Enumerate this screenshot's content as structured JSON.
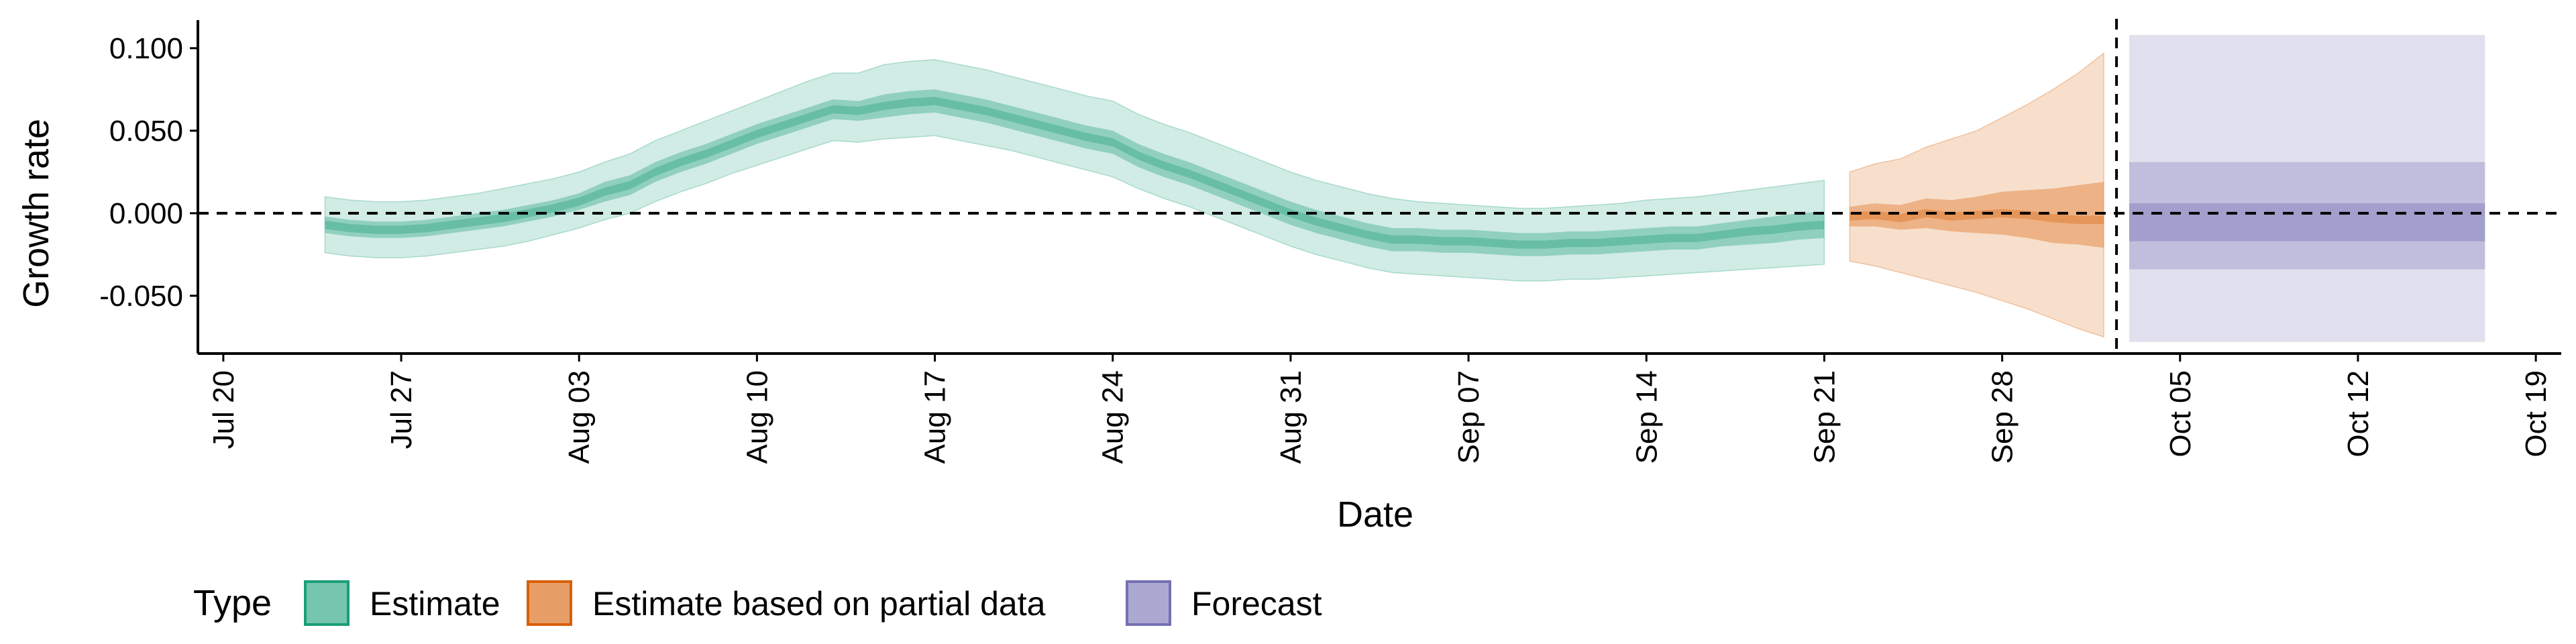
{
  "chart_data": {
    "type": "area",
    "title": "",
    "xlabel": "Date",
    "ylabel": "Growth rate",
    "x_ticks": [
      "Jul 20",
      "Jul 27",
      "Aug 03",
      "Aug 10",
      "Aug 17",
      "Aug 24",
      "Aug 31",
      "Sep 07",
      "Sep 14",
      "Sep 21",
      "Sep 28",
      "Oct 05",
      "Oct 12",
      "Oct 19"
    ],
    "y_ticks": [
      "0.100",
      "0.050",
      "0.000",
      "-0.050"
    ],
    "y_tick_values": [
      0.1,
      0.05,
      0.0,
      -0.05
    ],
    "xlim": [
      "2020-07-19",
      "2020-10-20"
    ],
    "ylim": [
      -0.085,
      0.117
    ],
    "grid": false,
    "legend": {
      "title": "Type",
      "position": "bottom",
      "entries": [
        "Estimate",
        "Estimate based on partial data",
        "Forecast"
      ]
    },
    "reference_lines": {
      "horizontal_y": 0.0,
      "vertical_x": "2020-10-02",
      "style": "dashed"
    },
    "colors": {
      "Estimate": "#1b9e77",
      "Estimate based on partial data": "#d95f02",
      "Forecast": "#7570b3"
    },
    "series": [
      {
        "name": "Estimate",
        "x": [
          "2020-07-24",
          "2020-07-25",
          "2020-07-26",
          "2020-07-27",
          "2020-07-28",
          "2020-07-29",
          "2020-07-30",
          "2020-07-31",
          "2020-08-01",
          "2020-08-02",
          "2020-08-03",
          "2020-08-04",
          "2020-08-05",
          "2020-08-06",
          "2020-08-07",
          "2020-08-08",
          "2020-08-09",
          "2020-08-10",
          "2020-08-11",
          "2020-08-12",
          "2020-08-13",
          "2020-08-14",
          "2020-08-15",
          "2020-08-16",
          "2020-08-17",
          "2020-08-18",
          "2020-08-19",
          "2020-08-20",
          "2020-08-21",
          "2020-08-22",
          "2020-08-23",
          "2020-08-24",
          "2020-08-25",
          "2020-08-26",
          "2020-08-27",
          "2020-08-28",
          "2020-08-29",
          "2020-08-30",
          "2020-08-31",
          "2020-09-01",
          "2020-09-02",
          "2020-09-03",
          "2020-09-04",
          "2020-09-05",
          "2020-09-06",
          "2020-09-07",
          "2020-09-08",
          "2020-09-09",
          "2020-09-10",
          "2020-09-11",
          "2020-09-12",
          "2020-09-13",
          "2020-09-14",
          "2020-09-15",
          "2020-09-16",
          "2020-09-17",
          "2020-09-18",
          "2020-09-19",
          "2020-09-20",
          "2020-09-21"
        ],
        "median": [
          -0.007,
          -0.009,
          -0.01,
          -0.01,
          -0.009,
          -0.007,
          -0.005,
          -0.003,
          0.0,
          0.003,
          0.007,
          0.013,
          0.017,
          0.025,
          0.031,
          0.036,
          0.042,
          0.048,
          0.053,
          0.058,
          0.063,
          0.062,
          0.065,
          0.067,
          0.068,
          0.065,
          0.062,
          0.058,
          0.054,
          0.05,
          0.046,
          0.043,
          0.035,
          0.029,
          0.024,
          0.018,
          0.012,
          0.006,
          0.0,
          -0.005,
          -0.009,
          -0.013,
          -0.016,
          -0.016,
          -0.017,
          -0.017,
          -0.018,
          -0.019,
          -0.019,
          -0.018,
          -0.018,
          -0.017,
          -0.016,
          -0.015,
          -0.015,
          -0.013,
          -0.011,
          -0.01,
          -0.008,
          -0.007
        ],
        "lower_50": [
          -0.012,
          -0.014,
          -0.015,
          -0.015,
          -0.014,
          -0.012,
          -0.01,
          -0.008,
          -0.005,
          -0.002,
          0.002,
          0.007,
          0.011,
          0.019,
          0.025,
          0.03,
          0.036,
          0.042,
          0.047,
          0.052,
          0.057,
          0.056,
          0.058,
          0.06,
          0.061,
          0.058,
          0.055,
          0.051,
          0.047,
          0.043,
          0.039,
          0.036,
          0.028,
          0.022,
          0.017,
          0.011,
          0.005,
          -0.001,
          -0.007,
          -0.012,
          -0.016,
          -0.02,
          -0.023,
          -0.023,
          -0.024,
          -0.024,
          -0.025,
          -0.026,
          -0.026,
          -0.025,
          -0.025,
          -0.024,
          -0.023,
          -0.022,
          -0.022,
          -0.02,
          -0.019,
          -0.018,
          -0.016,
          -0.015
        ],
        "upper_50": [
          -0.002,
          -0.004,
          -0.005,
          -0.005,
          -0.004,
          -0.002,
          0.0,
          0.002,
          0.005,
          0.008,
          0.012,
          0.019,
          0.023,
          0.031,
          0.037,
          0.042,
          0.048,
          0.054,
          0.059,
          0.064,
          0.069,
          0.068,
          0.072,
          0.074,
          0.075,
          0.072,
          0.069,
          0.065,
          0.061,
          0.057,
          0.053,
          0.05,
          0.042,
          0.036,
          0.031,
          0.025,
          0.019,
          0.013,
          0.007,
          0.002,
          -0.002,
          -0.006,
          -0.009,
          -0.009,
          -0.01,
          -0.01,
          -0.011,
          -0.012,
          -0.012,
          -0.011,
          -0.011,
          -0.01,
          -0.009,
          -0.008,
          -0.008,
          -0.006,
          -0.004,
          -0.002,
          0.0,
          0.001
        ],
        "lower_90": [
          -0.024,
          -0.026,
          -0.027,
          -0.027,
          -0.026,
          -0.024,
          -0.022,
          -0.02,
          -0.017,
          -0.013,
          -0.009,
          -0.004,
          0.0,
          0.007,
          0.013,
          0.018,
          0.024,
          0.029,
          0.034,
          0.039,
          0.044,
          0.043,
          0.045,
          0.046,
          0.047,
          0.044,
          0.041,
          0.038,
          0.034,
          0.03,
          0.026,
          0.022,
          0.015,
          0.009,
          0.004,
          -0.002,
          -0.008,
          -0.014,
          -0.02,
          -0.025,
          -0.029,
          -0.033,
          -0.036,
          -0.037,
          -0.038,
          -0.039,
          -0.04,
          -0.041,
          -0.041,
          -0.04,
          -0.04,
          -0.039,
          -0.038,
          -0.037,
          -0.036,
          -0.035,
          -0.034,
          -0.033,
          -0.032,
          -0.031
        ],
        "upper_90": [
          0.01,
          0.008,
          0.007,
          0.007,
          0.008,
          0.01,
          0.012,
          0.015,
          0.018,
          0.021,
          0.025,
          0.031,
          0.036,
          0.044,
          0.05,
          0.056,
          0.062,
          0.068,
          0.074,
          0.08,
          0.085,
          0.085,
          0.09,
          0.092,
          0.093,
          0.09,
          0.087,
          0.083,
          0.079,
          0.075,
          0.071,
          0.068,
          0.06,
          0.054,
          0.049,
          0.043,
          0.037,
          0.031,
          0.025,
          0.02,
          0.016,
          0.012,
          0.009,
          0.007,
          0.006,
          0.005,
          0.004,
          0.003,
          0.003,
          0.004,
          0.005,
          0.006,
          0.008,
          0.009,
          0.01,
          0.012,
          0.014,
          0.016,
          0.018,
          0.02
        ]
      },
      {
        "name": "Estimate based on partial data",
        "x": [
          "2020-09-22",
          "2020-09-23",
          "2020-09-24",
          "2020-09-25",
          "2020-09-26",
          "2020-09-27",
          "2020-09-28",
          "2020-09-29",
          "2020-09-30",
          "2020-10-01",
          "2020-10-02"
        ],
        "median": [
          -0.002,
          -0.001,
          -0.003,
          0.0,
          -0.002,
          -0.001,
          0.0,
          -0.001,
          -0.003,
          -0.004,
          -0.004
        ],
        "lower_50": [
          -0.008,
          -0.008,
          -0.01,
          -0.009,
          -0.011,
          -0.012,
          -0.013,
          -0.015,
          -0.018,
          -0.019,
          -0.021
        ],
        "upper_50": [
          0.004,
          0.006,
          0.005,
          0.009,
          0.008,
          0.01,
          0.013,
          0.014,
          0.015,
          0.017,
          0.019
        ],
        "lower_90": [
          -0.029,
          -0.032,
          -0.036,
          -0.04,
          -0.044,
          -0.048,
          -0.053,
          -0.058,
          -0.064,
          -0.07,
          -0.075
        ],
        "upper_90": [
          0.025,
          0.03,
          0.033,
          0.04,
          0.045,
          0.05,
          0.058,
          0.066,
          0.075,
          0.085,
          0.097
        ]
      },
      {
        "name": "Forecast",
        "x": [
          "2020-10-03",
          "2020-10-17"
        ],
        "median": [
          -0.005,
          -0.005
        ],
        "lower_50": [
          -0.017,
          -0.017
        ],
        "upper_50": [
          0.006,
          0.006
        ],
        "lower_30": [
          -0.034,
          -0.034
        ],
        "upper_30": [
          0.031,
          0.031
        ],
        "lower_90": [
          -0.078,
          -0.078
        ],
        "upper_90": [
          0.108,
          0.108
        ]
      }
    ]
  }
}
